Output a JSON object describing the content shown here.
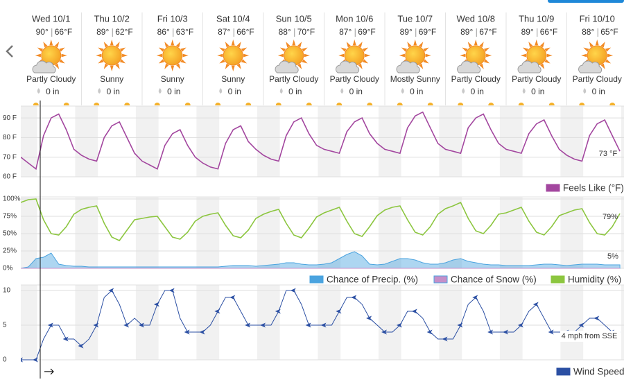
{
  "days": [
    {
      "date": "Wed 10/1",
      "high": "90°",
      "low": "66°F",
      "condition": "Partly Cloudy",
      "precip": "0 in"
    },
    {
      "date": "Thu 10/2",
      "high": "89°",
      "low": "62°F",
      "condition": "Sunny",
      "precip": "0 in"
    },
    {
      "date": "Fri 10/3",
      "high": "86°",
      "low": "63°F",
      "condition": "Sunny",
      "precip": "0 in"
    },
    {
      "date": "Sat 10/4",
      "high": "87°",
      "low": "66°F",
      "condition": "Sunny",
      "precip": "0 in"
    },
    {
      "date": "Sun 10/5",
      "high": "88°",
      "low": "70°F",
      "condition": "Partly Cloudy",
      "precip": "0 in"
    },
    {
      "date": "Mon 10/6",
      "high": "87°",
      "low": "69°F",
      "condition": "Partly Cloudy",
      "precip": "0 in"
    },
    {
      "date": "Tue 10/7",
      "high": "89°",
      "low": "69°F",
      "condition": "Mostly Sunny",
      "precip": "0 in"
    },
    {
      "date": "Wed 10/8",
      "high": "89°",
      "low": "67°F",
      "condition": "Partly Cloudy",
      "precip": "0 in"
    },
    {
      "date": "Thu 10/9",
      "high": "89°",
      "low": "66°F",
      "condition": "Partly Cloudy",
      "precip": "0 in"
    },
    {
      "date": "Fri 10/10",
      "high": "88°",
      "low": "65°F",
      "condition": "Partly Cloudy",
      "precip": "0 in"
    }
  ],
  "chart_data": [
    {
      "type": "line",
      "annotation": "73 °F",
      "grid": true,
      "x": [
        0,
        3,
        6,
        9,
        12,
        15,
        18,
        21,
        24,
        27,
        30,
        33,
        36,
        39,
        42,
        45,
        48,
        51,
        54,
        57,
        60,
        63,
        66,
        69,
        72,
        75,
        78,
        81,
        84,
        87,
        90,
        93,
        96,
        99,
        102,
        105,
        108,
        111,
        114,
        117,
        120,
        123,
        126,
        129,
        132,
        135,
        138,
        141,
        144,
        147,
        150,
        153,
        156,
        159,
        162,
        165,
        168,
        171,
        174,
        177,
        180,
        183,
        186,
        189,
        192,
        195,
        198,
        201,
        204,
        207,
        210,
        213,
        216,
        219,
        222,
        225,
        228,
        231,
        234,
        237
      ],
      "xlim": [
        0,
        240
      ],
      "ylim": [
        60,
        95
      ],
      "yticks": [
        {
          "value": 60,
          "label": "60 F"
        },
        {
          "value": 70,
          "label": "70 F"
        },
        {
          "value": 80,
          "label": "80 F"
        },
        {
          "value": 90,
          "label": "90 F"
        }
      ],
      "series": [
        {
          "name": "Feels Like (°F)",
          "color": "#a3479f",
          "style": "line",
          "values": [
            70,
            67,
            64,
            81,
            90,
            92,
            84,
            74,
            71,
            69,
            68,
            80,
            86,
            88,
            80,
            72,
            68,
            66,
            64,
            76,
            82,
            84,
            76,
            70,
            67,
            65,
            64,
            77,
            84,
            86,
            78,
            74,
            71,
            69,
            68,
            81,
            88,
            90,
            82,
            76,
            74,
            73,
            72,
            83,
            88,
            90,
            82,
            77,
            74,
            73,
            72,
            85,
            91,
            93,
            85,
            77,
            74,
            73,
            72,
            85,
            90,
            92,
            84,
            77,
            74,
            73,
            72,
            82,
            87,
            89,
            81,
            74,
            71,
            69,
            68,
            81,
            87,
            89,
            81,
            73
          ]
        }
      ]
    },
    {
      "type": "line",
      "annotation": [
        "5%",
        "79%"
      ],
      "grid": true,
      "x": [
        0,
        3,
        6,
        9,
        12,
        15,
        18,
        21,
        24,
        27,
        30,
        33,
        36,
        39,
        42,
        45,
        48,
        51,
        54,
        57,
        60,
        63,
        66,
        69,
        72,
        75,
        78,
        81,
        84,
        87,
        90,
        93,
        96,
        99,
        102,
        105,
        108,
        111,
        114,
        117,
        120,
        123,
        126,
        129,
        132,
        135,
        138,
        141,
        144,
        147,
        150,
        153,
        156,
        159,
        162,
        165,
        168,
        171,
        174,
        177,
        180,
        183,
        186,
        189,
        192,
        195,
        198,
        201,
        204,
        207,
        210,
        213,
        216,
        219,
        222,
        225,
        228,
        231,
        234,
        237
      ],
      "xlim": [
        0,
        240
      ],
      "ylim": [
        0,
        100
      ],
      "yticks": [
        {
          "value": 0,
          "label": "0%"
        },
        {
          "value": 25,
          "label": "25%"
        },
        {
          "value": 50,
          "label": "50%"
        },
        {
          "value": 75,
          "label": "75%"
        },
        {
          "value": 100,
          "label": "100%"
        }
      ],
      "series": [
        {
          "name": "Chance of Precip. (%)",
          "color": "#4aa3df",
          "style": "area",
          "values": [
            0,
            2,
            14,
            16,
            22,
            6,
            4,
            3,
            3,
            2,
            2,
            2,
            2,
            2,
            2,
            2,
            2,
            2,
            2,
            2,
            2,
            2,
            2,
            2,
            2,
            2,
            2,
            3,
            4,
            4,
            4,
            3,
            4,
            5,
            6,
            8,
            8,
            6,
            5,
            5,
            6,
            8,
            14,
            20,
            24,
            18,
            6,
            5,
            6,
            10,
            14,
            14,
            12,
            8,
            6,
            6,
            8,
            12,
            14,
            10,
            8,
            6,
            5,
            5,
            4,
            4,
            4,
            4,
            5,
            6,
            6,
            5,
            4,
            5,
            6,
            6,
            6,
            5,
            5,
            5
          ]
        },
        {
          "name": "Chance of Snow (%)",
          "color": "#c58fc8",
          "style": "area",
          "values": [
            0,
            0,
            0,
            0,
            0,
            0,
            0,
            0,
            0,
            0,
            0,
            0,
            0,
            0,
            0,
            0,
            0,
            0,
            0,
            0,
            0,
            0,
            0,
            0,
            0,
            0,
            0,
            0,
            0,
            0,
            0,
            0,
            0,
            0,
            0,
            0,
            0,
            0,
            0,
            0,
            0,
            0,
            0,
            0,
            0,
            0,
            0,
            0,
            0,
            0,
            0,
            0,
            0,
            0,
            0,
            0,
            0,
            0,
            0,
            0,
            0,
            0,
            0,
            0,
            0,
            0,
            0,
            0,
            0,
            0,
            0,
            0,
            0,
            0,
            0,
            0,
            0,
            0,
            0,
            0
          ]
        },
        {
          "name": "Humidity (%)",
          "color": "#8cc63f",
          "style": "line",
          "values": [
            95,
            99,
            100,
            70,
            50,
            48,
            60,
            78,
            85,
            88,
            90,
            65,
            45,
            40,
            55,
            70,
            72,
            74,
            75,
            60,
            45,
            42,
            52,
            68,
            75,
            78,
            80,
            62,
            47,
            44,
            55,
            72,
            78,
            82,
            85,
            65,
            48,
            44,
            58,
            74,
            80,
            84,
            88,
            68,
            50,
            46,
            60,
            76,
            84,
            88,
            90,
            70,
            52,
            48,
            60,
            78,
            86,
            90,
            95,
            72,
            54,
            50,
            62,
            78,
            80,
            84,
            88,
            68,
            52,
            48,
            60,
            76,
            80,
            84,
            86,
            66,
            50,
            48,
            60,
            79
          ]
        }
      ]
    },
    {
      "type": "line",
      "annotation": "4 mph from SSE",
      "grid": true,
      "x": [
        0,
        3,
        6,
        9,
        12,
        15,
        18,
        21,
        24,
        27,
        30,
        33,
        36,
        39,
        42,
        45,
        48,
        51,
        54,
        57,
        60,
        63,
        66,
        69,
        72,
        75,
        78,
        81,
        84,
        87,
        90,
        93,
        96,
        99,
        102,
        105,
        108,
        111,
        114,
        117,
        120,
        123,
        126,
        129,
        132,
        135,
        138,
        141,
        144,
        147,
        150,
        153,
        156,
        159,
        162,
        165,
        168,
        171,
        174,
        177,
        180,
        183,
        186,
        189,
        192,
        195,
        198,
        201,
        204,
        207,
        210,
        213,
        216,
        219,
        222,
        225,
        228,
        231,
        234,
        237
      ],
      "xlim": [
        0,
        240
      ],
      "ylim": [
        0,
        10.5
      ],
      "yticks": [
        0,
        5,
        10
      ],
      "series": [
        {
          "name": "Wind Speed",
          "color": "#2b4fa3",
          "style": "line",
          "markers": true,
          "values": [
            0,
            0,
            0,
            3,
            5,
            5,
            3,
            3,
            2,
            3,
            5,
            9,
            10,
            8,
            5,
            6,
            5,
            5,
            8,
            10,
            10,
            6,
            4,
            4,
            4,
            5,
            7,
            9,
            9,
            7,
            5,
            5,
            5,
            5,
            7,
            10,
            10,
            8,
            5,
            5,
            5,
            5,
            7,
            9,
            9,
            8,
            6,
            5,
            4,
            4,
            5,
            7,
            7,
            6,
            4,
            3,
            3,
            3,
            5,
            8,
            9,
            7,
            4,
            4,
            4,
            4,
            5,
            7,
            8,
            6,
            4,
            4,
            4,
            4,
            5,
            6,
            6,
            5,
            4,
            4
          ]
        }
      ]
    }
  ]
}
